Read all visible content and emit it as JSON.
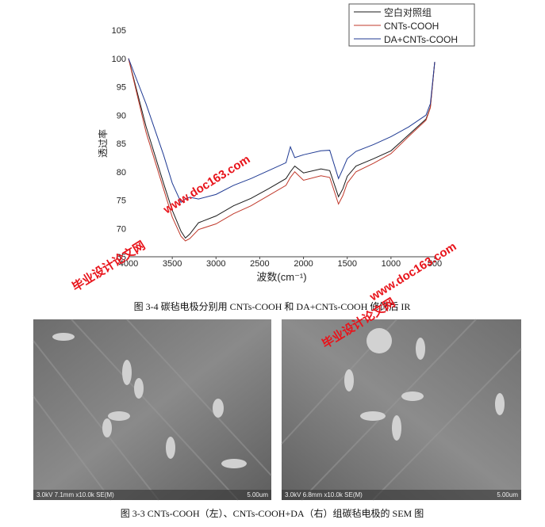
{
  "chart_data": {
    "type": "line",
    "y_label": "透过率",
    "x_label": "波数(cm⁻¹)",
    "x": [
      4000,
      3800,
      3600,
      3500,
      3400,
      3350,
      3300,
      3200,
      3000,
      2800,
      2600,
      2400,
      2200,
      2150,
      2100,
      2000,
      1800,
      1700,
      1600,
      1550,
      1500,
      1400,
      1200,
      1000,
      800,
      600,
      550,
      500
    ],
    "series": [
      {
        "name": "空白对照组",
        "color": "#1a1a1a",
        "values": [
          100,
          88,
          78,
          73.2,
          69.5,
          68.3,
          69,
          71,
          72.2,
          74,
          75.3,
          77,
          78.8,
          80,
          81,
          79.8,
          80.5,
          80.2,
          75.6,
          77,
          79.2,
          81,
          82.3,
          83.7,
          86.5,
          89.3,
          91.4,
          99.4
        ]
      },
      {
        "name": "CNTs-COOH",
        "color": "#c0392b",
        "values": [
          100,
          87,
          77,
          72,
          68.6,
          67.8,
          68.2,
          69.8,
          70.8,
          72.6,
          74,
          75.8,
          77.6,
          79,
          80,
          78.5,
          79.3,
          79,
          74.3,
          75.8,
          78,
          80,
          81.5,
          83.2,
          86.2,
          89.1,
          91.3,
          99.4
        ]
      },
      {
        "name": "DA+CNTs-COOH",
        "color": "#1f3a93",
        "values": [
          100,
          92,
          83,
          78,
          74.6,
          75.2,
          75.5,
          75.2,
          76,
          77.6,
          78.8,
          80.2,
          81.6,
          84.4,
          82.5,
          83,
          83.7,
          83.8,
          78.8,
          80.5,
          82.3,
          83.6,
          84.8,
          86.2,
          87.9,
          90,
          92,
          99.4
        ]
      }
    ],
    "xlim": [
      4000,
      500
    ],
    "xticks": [
      4000,
      3500,
      3000,
      2500,
      2000,
      1500,
      1000,
      500
    ],
    "ylim": [
      65,
      105
    ],
    "yticks": [
      65,
      70,
      75,
      80,
      85,
      90,
      95,
      100,
      105
    ],
    "legend": "top-right"
  },
  "caption": "图 3-4  碳毡电极分别用 CNTs-COOH 和 DA+CNTs-COOH 修饰后 IR",
  "sem_images": [
    {
      "info": "3.0kV 7.1mm x10.0k SE(M)",
      "scale": "5.00um"
    },
    {
      "info": "3.0kV 6.8mm x10.0k SE(M)",
      "scale": "5.00um"
    }
  ],
  "sem_caption": "图 3-3 CNTs-COOH（左）、CNTs-COOH+DA（右）组碳毡电极的 SEM 图",
  "watermarks": [
    "毕业设计论文网",
    "www.doc163.com"
  ]
}
